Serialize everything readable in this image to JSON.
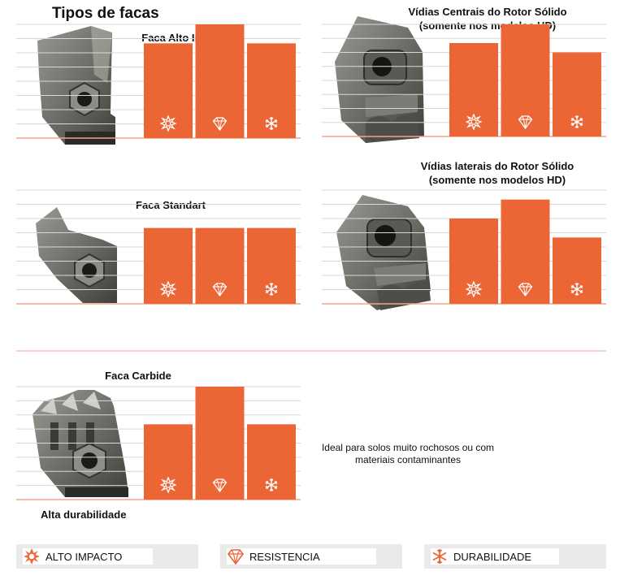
{
  "page_title": "Tipos de facas",
  "colors": {
    "bar": "#ec6535",
    "grid": "#d8d8d8",
    "axis": "#f0a58a",
    "legend_bg": "#eaeaea"
  },
  "series_names": [
    "ALTO IMPACTO",
    "RESISTENCIA",
    "DURABILIDADE"
  ],
  "series_icons": [
    "impact-burst-icon",
    "diamond-icon",
    "snowflake-icon"
  ],
  "chart_data": [
    {
      "type": "bar",
      "title": "Faca Alto Impacto",
      "title_line2": "",
      "values": [
        5,
        6,
        5
      ],
      "ylim": [
        0,
        6
      ],
      "grid": true,
      "image": "faca-alto-impacto-photo"
    },
    {
      "type": "bar",
      "title": "Vídias Centrais do Rotor Sólido",
      "title_line2": "(somente nos modelos HD)",
      "values": [
        5,
        6,
        4.5
      ],
      "ylim": [
        0,
        6
      ],
      "grid": true,
      "image": "vidia-central-photo"
    },
    {
      "type": "bar",
      "title": "Faca Standart",
      "title_line2": "",
      "values": [
        4,
        4,
        4
      ],
      "ylim": [
        0,
        6
      ],
      "grid": true,
      "image": "faca-standart-photo"
    },
    {
      "type": "bar",
      "title": "Vídias laterais do Rotor Sólido",
      "title_line2": "(somente nos modelos HD)",
      "values": [
        4.5,
        5.5,
        3.5
      ],
      "ylim": [
        0,
        6
      ],
      "grid": true,
      "image": "vidia-lateral-photo"
    },
    {
      "type": "bar",
      "title": "Faca Carbide",
      "title_line2": "",
      "values": [
        4,
        6,
        4
      ],
      "ylim": [
        0,
        6
      ],
      "grid": true,
      "image": "faca-carbide-photo"
    }
  ],
  "note": {
    "line1": "Ideal para solos muito rochosos ou com",
    "line2": "materiais contaminantes"
  },
  "caption": "Alta durabilidade",
  "legend": [
    {
      "label": "ALTO IMPACTO",
      "icon": "impact-burst-icon"
    },
    {
      "label": "RESISTENCIA",
      "icon": "diamond-icon"
    },
    {
      "label": "DURABILIDADE",
      "icon": "snowflake-icon"
    }
  ]
}
